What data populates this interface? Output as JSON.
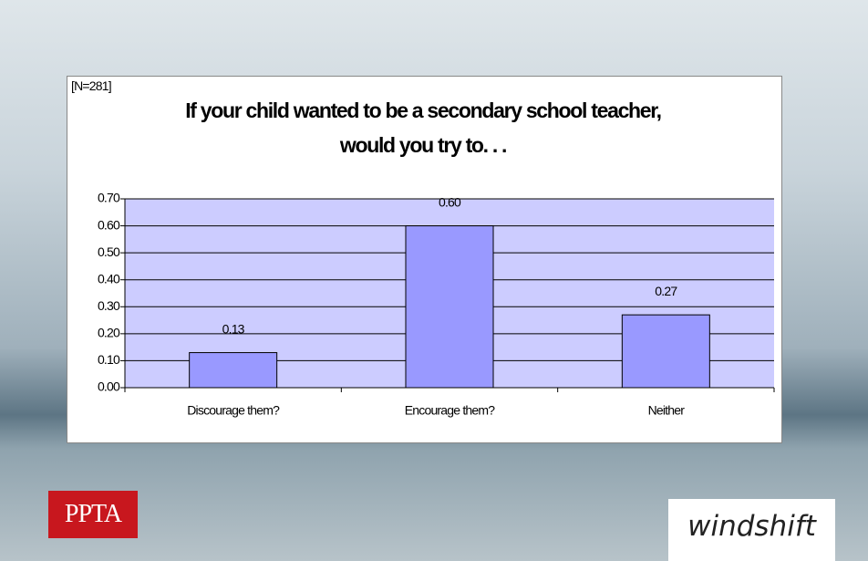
{
  "chart_data": {
    "type": "bar",
    "title": "If your child wanted to be a secondary school teacher, would you try to. . .",
    "annotation": "[N=281]",
    "categories": [
      "Discourage them?",
      "Encourage them?",
      "Neither"
    ],
    "values": [
      0.13,
      0.6,
      0.27
    ],
    "value_labels": [
      "0.13",
      "0.60",
      "0.27"
    ],
    "color": "#9999ff",
    "ylim": [
      0,
      0.7
    ],
    "yticks": [
      {
        "value": 0,
        "label": "0.00"
      },
      {
        "value": 0.1,
        "label": "0.10"
      },
      {
        "value": 0.2,
        "label": "0.20"
      },
      {
        "value": 0.3,
        "label": "0.30"
      },
      {
        "value": 0.4,
        "label": "0.40"
      },
      {
        "value": 0.5,
        "label": "0.50"
      },
      {
        "value": 0.6,
        "label": "0.60"
      },
      {
        "value": 0.7,
        "label": "0.70"
      }
    ],
    "grid": true
  },
  "logos": [
    "PPTA",
    "windshift"
  ]
}
